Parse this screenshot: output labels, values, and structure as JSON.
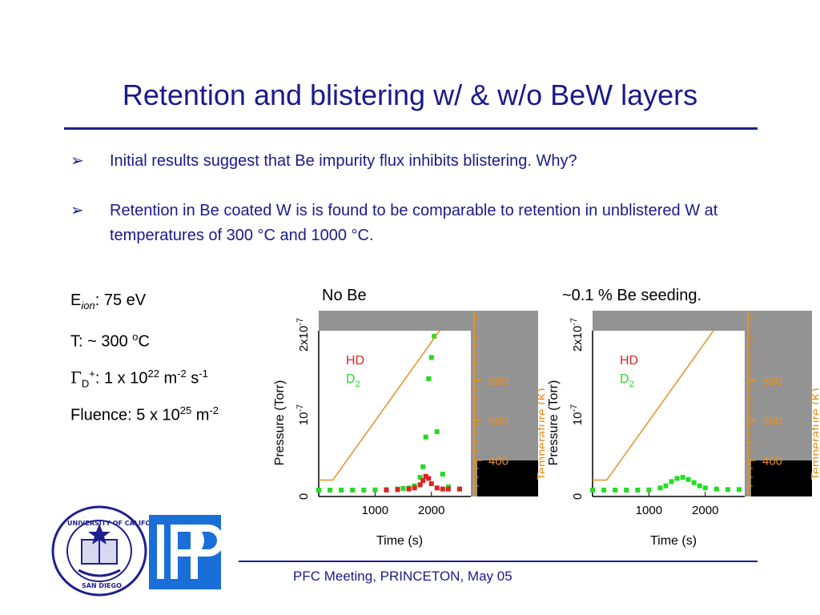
{
  "slide": {
    "title": "Retention and blistering w/ & w/o BeW layers",
    "bullets": [
      {
        "text": "Initial results suggest that Be impurity flux inhibits blistering.  Why?"
      },
      {
        "text": "Retention in Be coated W is is found to be comparable to retention in unblistered W at temperatures of 300 °C and 1000 °C."
      }
    ],
    "params": {
      "e_ion": {
        "symbol": "E",
        "sub": "ion",
        "value": ": 75 eV"
      },
      "temp": {
        "prefix": "T: ~ 300 ",
        "sup": "o",
        "suffix": "C"
      },
      "flux": {
        "gamma": "Γ",
        "sub": "D",
        "sup_plus": "+",
        "mid": ": 1 x 10",
        "exp": "22",
        "unit1": " m",
        "unit1_exp": "-2",
        "unit2": " s",
        "unit2_exp": "-1"
      },
      "fluence": {
        "prefix": "Fluence:  5 x 10",
        "exp": "25",
        "unit": " m",
        "unit_exp": "-2"
      }
    },
    "footer": "PFC Meeting, PRINCETON, May 05",
    "logos": {
      "ucsd": "University of California San Diego seal",
      "ipp": "IPP"
    }
  },
  "chart_data": [
    {
      "type": "scatter",
      "title": "No Be",
      "xlabel": "Time  (s)",
      "ylabel": "Pressure  (Torr)",
      "ylabel_right": "Temperature  (K)",
      "x_ticks": [
        "1000",
        "2000"
      ],
      "y_ticks": [
        "0",
        "10-7",
        "2x10-7"
      ],
      "y_right_ticks": [
        "400",
        "600",
        "800"
      ],
      "legend": [
        "HD",
        "D2"
      ],
      "series": [
        {
          "name": "D2",
          "color": "#22dd22",
          "x": [
            0,
            200,
            400,
            600,
            800,
            1000,
            1200,
            1400,
            1500,
            1600,
            1700,
            1800,
            1850,
            1900,
            1950,
            2000,
            2050,
            2100,
            2200,
            2300,
            2500
          ],
          "y": [
            0,
            0,
            0,
            0,
            0,
            0.002,
            0.005,
            0.01,
            0.015,
            0.02,
            0.04,
            0.12,
            0.22,
            0.5,
            1.05,
            1.25,
            1.45,
            0.55,
            0.15,
            0.03,
            0.01
          ]
        },
        {
          "name": "HD",
          "color": "#dd2222",
          "x": [
            1200,
            1400,
            1600,
            1700,
            1800,
            1850,
            1900,
            1950,
            2000,
            2100,
            2200,
            2300,
            2500
          ],
          "y": [
            0,
            0.005,
            0.01,
            0.02,
            0.05,
            0.09,
            0.13,
            0.11,
            0.06,
            0.02,
            0.01,
            0.01,
            0.01
          ]
        },
        {
          "name": "Temperature",
          "color": "#e69020",
          "line": true,
          "x": [
            0,
            250,
            2150
          ],
          "y_temp": [
            300,
            300,
            1050
          ]
        }
      ]
    },
    {
      "type": "scatter",
      "title": "~0.1 % Be seeding.",
      "xlabel": "Time  (s)",
      "ylabel": "Pressure  (Torr)",
      "ylabel_right": "Temperature  (K)",
      "x_ticks": [
        "1000",
        "2000"
      ],
      "y_ticks": [
        "0",
        "10-7",
        "2x10-7"
      ],
      "y_right_ticks": [
        "400",
        "600",
        "800"
      ],
      "legend": [
        "HD",
        "D2"
      ],
      "series": [
        {
          "name": "D2",
          "color": "#22dd22",
          "x": [
            0,
            200,
            400,
            600,
            800,
            1000,
            1200,
            1300,
            1400,
            1500,
            1600,
            1700,
            1800,
            1900,
            2000,
            2200,
            2400,
            2600
          ],
          "y": [
            0,
            0,
            0,
            0,
            0,
            0.002,
            0.02,
            0.04,
            0.08,
            0.11,
            0.12,
            0.1,
            0.07,
            0.04,
            0.02,
            0.01,
            0.005,
            0.005
          ]
        },
        {
          "name": "HD",
          "color": "#dd2222",
          "x": [],
          "y": []
        },
        {
          "name": "Temperature",
          "color": "#e69020",
          "line": true,
          "x": [
            0,
            250,
            2150
          ],
          "y_temp": [
            300,
            300,
            1050
          ]
        }
      ]
    }
  ]
}
